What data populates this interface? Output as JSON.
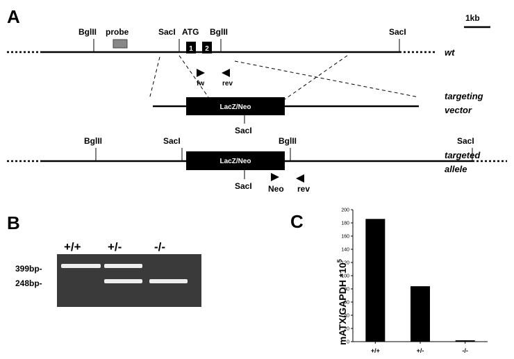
{
  "panels": {
    "a": "A",
    "b": "B",
    "c": "C"
  },
  "diagram": {
    "scale": "1kb",
    "wt_sites": [
      "BglII",
      "probe",
      "SacI",
      "ATG",
      "BglII",
      "SacI"
    ],
    "exons": [
      "1",
      "2"
    ],
    "primers": [
      "fw",
      "rev"
    ],
    "wt": "wt",
    "vector": {
      "insert": "LacZ/Neo",
      "site": "SacI",
      "label": [
        "targeting",
        "vector"
      ]
    },
    "allele": {
      "sites": [
        "BglII",
        "SacI",
        "BglII",
        "SacI"
      ],
      "insert": "LacZ/Neo",
      "below_site": "SacI",
      "primers": [
        "Neo",
        "rev"
      ],
      "label": [
        "targeted",
        "allele"
      ]
    }
  },
  "gel": {
    "lanes": [
      "+/+",
      "+/-",
      "-/-"
    ],
    "sizes": [
      "399bp-",
      "248bp-"
    ]
  },
  "chart_data": {
    "type": "bar",
    "categories": [
      "+/+",
      "+/-",
      "-/-"
    ],
    "values": [
      186,
      84,
      2
    ],
    "color": "#000000",
    "ylabel": "mATX/GAPDH *10",
    "ylabel_sup": "5",
    "ylim": [
      0,
      200
    ],
    "yticks": [
      0,
      20,
      40,
      60,
      80,
      100,
      120,
      140,
      160,
      180,
      200
    ]
  }
}
